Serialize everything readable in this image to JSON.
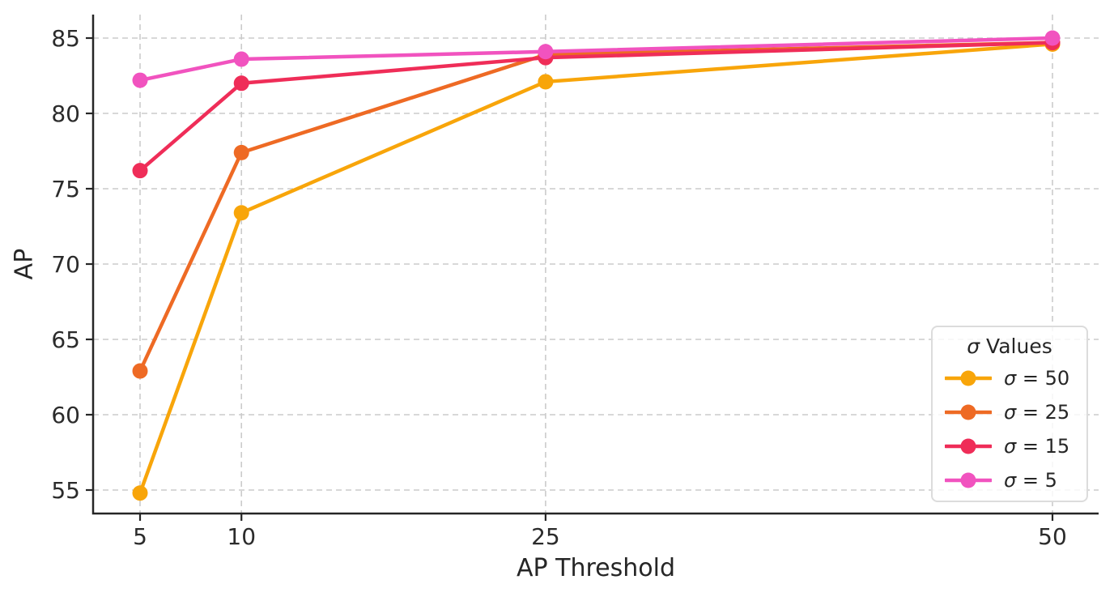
{
  "chart_data": {
    "type": "line",
    "title": "",
    "xlabel": "AP Threshold",
    "ylabel": "AP",
    "x": [
      5,
      10,
      25,
      50
    ],
    "xtick_labels": [
      "5",
      "10",
      "25",
      "50"
    ],
    "yticks": [
      55,
      60,
      65,
      70,
      75,
      80,
      85
    ],
    "xlim": [
      2.7,
      52.3
    ],
    "ylim": [
      53.4,
      86.6
    ],
    "grid": true,
    "grid_style": "dashed",
    "legend_title": "σ Values",
    "legend_position": "lower right",
    "series": [
      {
        "name": "sigma-50",
        "label": "σ = 50",
        "color": "#F8A50A",
        "values": [
          54.8,
          73.4,
          82.1,
          84.6
        ]
      },
      {
        "name": "sigma-25",
        "label": "σ = 25",
        "color": "#EE6A24",
        "values": [
          62.9,
          77.4,
          83.9,
          84.7
        ]
      },
      {
        "name": "sigma-15",
        "label": "σ = 15",
        "color": "#EF2D58",
        "values": [
          76.2,
          82.0,
          83.7,
          84.7
        ]
      },
      {
        "name": "sigma-5",
        "label": "σ = 5",
        "color": "#F153BF",
        "values": [
          82.2,
          83.6,
          84.1,
          85.0
        ]
      }
    ]
  },
  "style_colors": {
    "spine": "#262626",
    "tick_label": "#2b2b2b",
    "grid": "#cbcbcb",
    "legend_border": "#dcdcdc",
    "background": "#ffffff"
  }
}
